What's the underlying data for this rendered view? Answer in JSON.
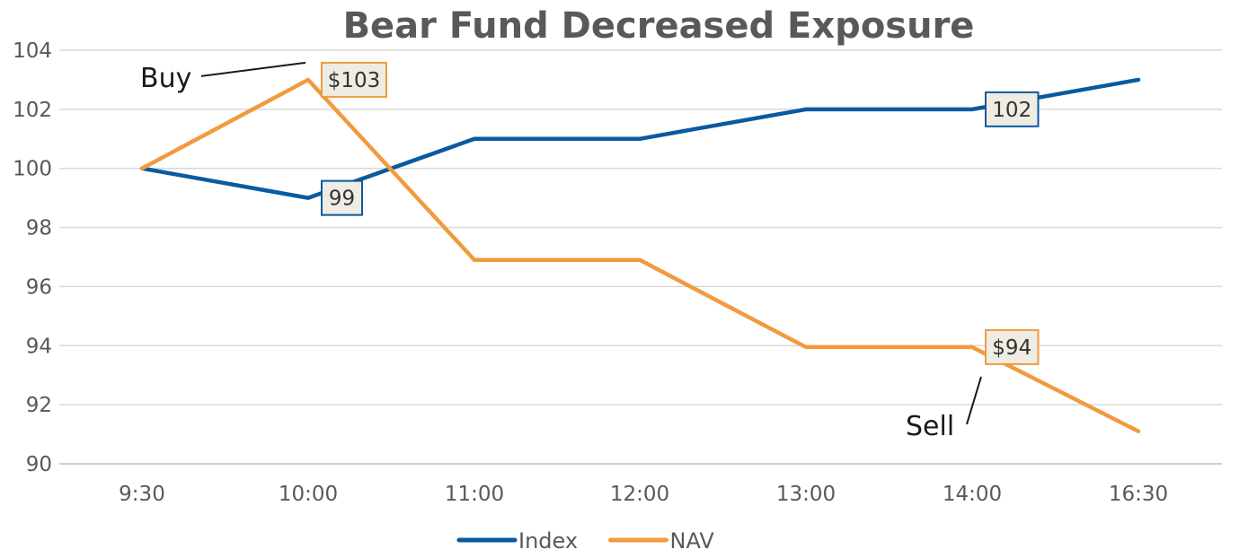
{
  "chart_data": {
    "type": "line",
    "title": "Bear Fund Decreased Exposure",
    "xlabel": "",
    "ylabel": "",
    "categories": [
      "9:30",
      "10:00",
      "11:00",
      "12:00",
      "13:00",
      "14:00",
      "16:30"
    ],
    "ylim": [
      90,
      104
    ],
    "yticks": [
      90,
      92,
      94,
      96,
      98,
      100,
      102,
      104
    ],
    "grid": true,
    "legend_position": "bottom",
    "series": [
      {
        "name": "Index",
        "color": "#0a5aa0",
        "values": [
          100,
          99,
          101,
          101,
          102,
          102,
          103
        ]
      },
      {
        "name": "NAV",
        "color": "#f29a3e",
        "values": [
          100,
          103,
          96.9,
          96.9,
          93.95,
          93.95,
          91.1
        ]
      }
    ],
    "data_labels": [
      {
        "series": "NAV",
        "index": 1,
        "text": "$103"
      },
      {
        "series": "Index",
        "index": 1,
        "text": "99"
      },
      {
        "series": "Index",
        "index": 5,
        "text": "102"
      },
      {
        "series": "NAV",
        "index": 5,
        "text": "$94"
      }
    ],
    "annotations": [
      {
        "text": "Buy",
        "index": 1,
        "series": "NAV"
      },
      {
        "text": "Sell",
        "index": 5,
        "series": "NAV"
      }
    ]
  }
}
